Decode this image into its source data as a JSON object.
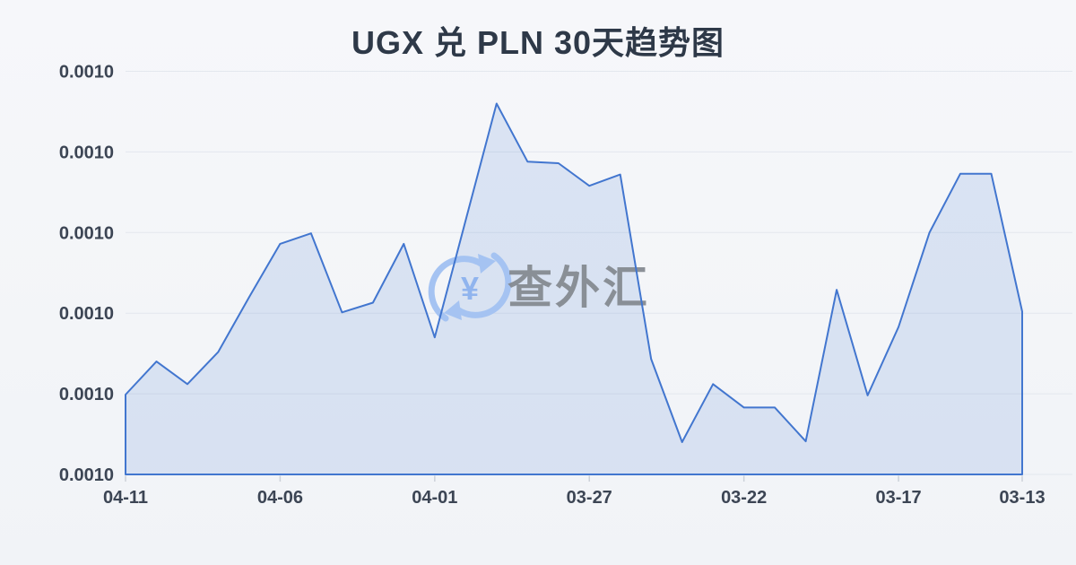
{
  "page": {
    "title": "UGX 兑 PLN 30天趋势图"
  },
  "watermark": {
    "text": "查外汇",
    "icon": "currency-exchange-yuan-icon"
  },
  "chart_data": {
    "type": "area",
    "title": "UGX 兑 PLN 30天趋势图",
    "dates": [
      "04-11",
      "04-10",
      "04-09",
      "04-08",
      "04-07",
      "04-06",
      "04-05",
      "04-04",
      "04-03",
      "04-02",
      "04-01",
      "03-31",
      "03-30",
      "03-29",
      "03-28",
      "03-27",
      "03-26",
      "03-25",
      "03-24",
      "03-23",
      "03-22",
      "03-21",
      "03-20",
      "03-19",
      "03-18",
      "03-17",
      "03-16",
      "03-15",
      "03-14",
      "03-13"
    ],
    "values": [
      0.99,
      1.4,
      1.12,
      1.52,
      2.2,
      2.86,
      2.99,
      2.01,
      2.13,
      2.86,
      1.7,
      3.15,
      4.6,
      3.88,
      3.86,
      3.58,
      3.72,
      1.43,
      0.4,
      1.12,
      0.83,
      0.83,
      0.41,
      2.29,
      0.98,
      1.83,
      3.0,
      3.73,
      3.73,
      2.02
    ],
    "y_unit": "normalized gridline intervals above x-axis (every y tick renders as 0.0010)",
    "y_axis": {
      "max": 5,
      "tick_labels": [
        "0.0010",
        "0.0010",
        "0.0010",
        "0.0010",
        "0.0010",
        "0.0010"
      ]
    },
    "x_axis": {
      "direction": "dates descend left to right",
      "ticks": [
        {
          "index": 0,
          "label": "04-11"
        },
        {
          "index": 5,
          "label": "04-06"
        },
        {
          "index": 10,
          "label": "04-01"
        },
        {
          "index": 15,
          "label": "03-27"
        },
        {
          "index": 20,
          "label": "03-22"
        },
        {
          "index": 25,
          "label": "03-17"
        },
        {
          "index": 29,
          "label": "03-13"
        }
      ]
    },
    "grid": true,
    "legend": "none",
    "colors": {
      "line": "#4276cf",
      "area_fill": "rgba(67,119,210,0.15)",
      "gridline": "#e3e7ee",
      "tick_mark": "#ccd1d9",
      "tick_text": "#3c4554",
      "title_text": "#2e3948",
      "watermark_gray": "#83888f",
      "watermark_blue": "#a5c3f2"
    }
  }
}
